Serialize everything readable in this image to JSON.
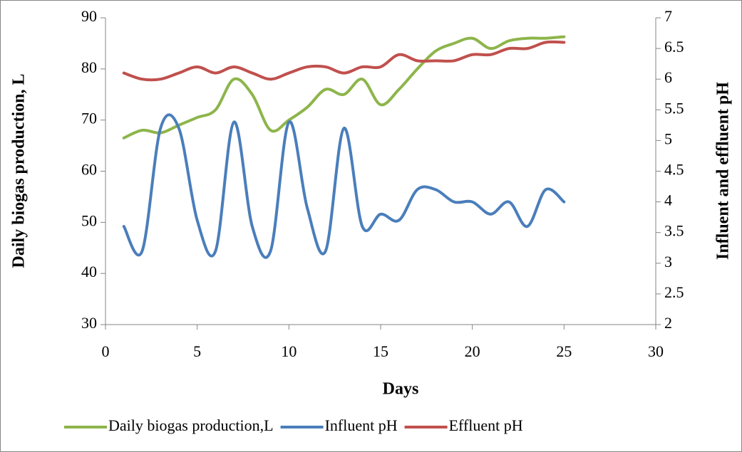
{
  "chart_data": {
    "type": "line",
    "xlabel": "Days",
    "ylabel": "Daily biogas production, L",
    "y2label": "Influent and effluent pH",
    "x": [
      1,
      2,
      3,
      4,
      5,
      6,
      7,
      8,
      9,
      10,
      11,
      12,
      13,
      14,
      15,
      16,
      17,
      18,
      19,
      20,
      21,
      22,
      23,
      24,
      25
    ],
    "series": [
      {
        "name": "Daily biogas production,L",
        "color": "#8db54b",
        "axis": "y",
        "values": [
          66.5,
          68,
          67.5,
          69,
          70.5,
          72,
          78,
          75,
          68,
          70,
          72.5,
          76,
          75,
          78,
          73,
          76,
          80,
          83.5,
          85,
          86,
          84,
          85.5,
          86,
          86,
          86.3
        ]
      },
      {
        "name": "Influent pH",
        "color": "#4a7ebb",
        "axis": "y2",
        "values": [
          3.6,
          3.2,
          5.2,
          5.2,
          3.7,
          3.2,
          5.3,
          3.6,
          3.2,
          5.3,
          3.9,
          3.2,
          5.2,
          3.6,
          3.8,
          3.7,
          4.2,
          4.2,
          4.0,
          4.0,
          3.8,
          4.0,
          3.6,
          4.2,
          4.0
        ]
      },
      {
        "name": "Effluent pH",
        "color": "#c0504d",
        "axis": "y2",
        "values": [
          6.1,
          6.0,
          6.0,
          6.1,
          6.2,
          6.1,
          6.2,
          6.1,
          6.0,
          6.1,
          6.2,
          6.2,
          6.1,
          6.2,
          6.2,
          6.4,
          6.3,
          6.3,
          6.3,
          6.4,
          6.4,
          6.5,
          6.5,
          6.6,
          6.6
        ]
      }
    ],
    "xlim": [
      0,
      30
    ],
    "xticks": [
      0,
      5,
      10,
      15,
      20,
      25,
      30
    ],
    "ylim": [
      30,
      90
    ],
    "yticks": [
      30,
      40,
      50,
      60,
      70,
      80,
      90
    ],
    "y2lim": [
      2,
      7
    ],
    "y2ticks": [
      2,
      2.5,
      3,
      3.5,
      4,
      4.5,
      5,
      5.5,
      6,
      6.5,
      7
    ],
    "grid": false,
    "legend": "bottom",
    "smooth": true
  }
}
